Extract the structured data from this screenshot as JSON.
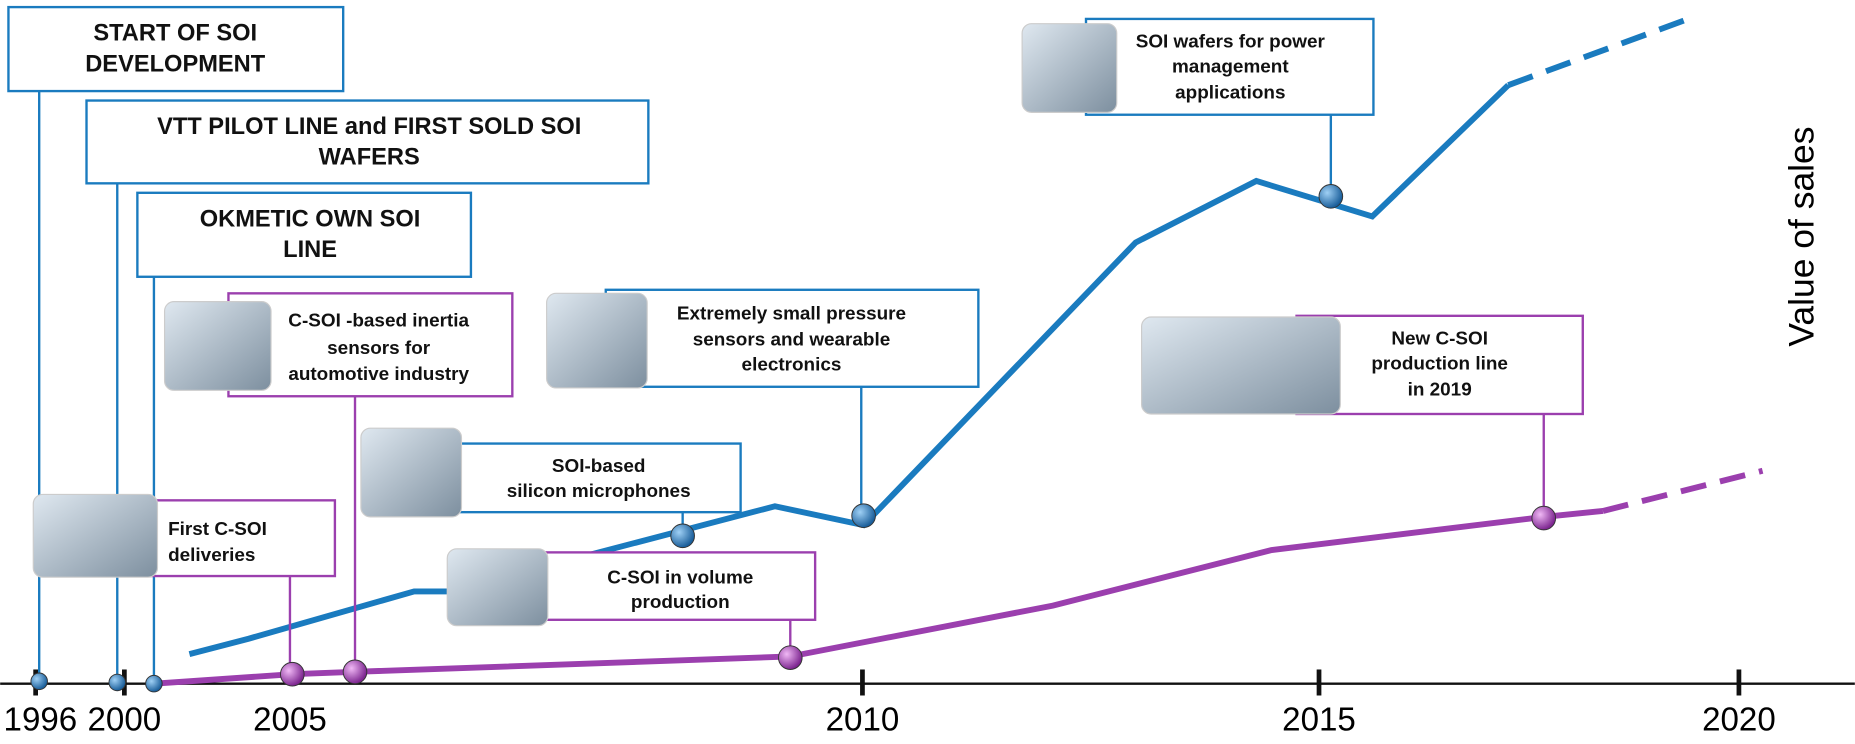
{
  "y_axis_label": "Value of sales",
  "x_axis": {
    "ticks": [
      "1996",
      "2000",
      "2005",
      "2010",
      "2015",
      "2020"
    ]
  },
  "events": [
    {
      "lines": [
        "START OF SOI",
        "DEVELOPMENT"
      ]
    },
    {
      "lines": [
        "VTT PILOT LINE and FIRST SOLD SOI",
        "WAFERS"
      ]
    },
    {
      "lines": [
        "OKMETIC OWN SOI",
        "LINE"
      ]
    },
    {
      "lines": [
        "C-SOI -based inertia",
        "sensors for",
        "automotive industry"
      ]
    },
    {
      "lines": [
        "First C-SOI",
        "deliveries"
      ]
    },
    {
      "lines": [
        "SOI-based",
        "silicon microphones"
      ]
    },
    {
      "lines": [
        "C-SOI in volume",
        "production"
      ]
    },
    {
      "lines": [
        "Extremely small pressure",
        "sensors and wearable",
        "electronics"
      ]
    },
    {
      "lines": [
        "SOI wafers for power",
        "management",
        "applications"
      ]
    },
    {
      "lines": [
        "New C-SOI",
        "production line",
        "in 2019"
      ]
    }
  ]
}
